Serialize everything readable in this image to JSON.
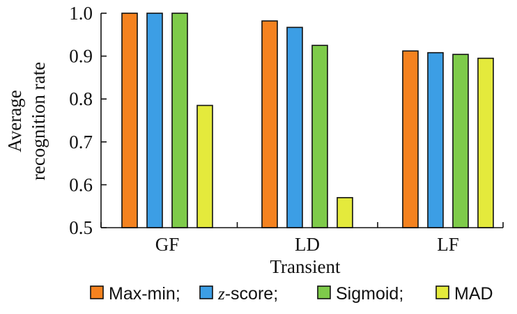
{
  "chart_data": {
    "type": "bar",
    "xlabel": "Transient",
    "ylabel_lines": [
      "Average",
      "recognition rate"
    ],
    "ylim": [
      0.5,
      1.0
    ],
    "yticks": [
      "0.5",
      "0.6",
      "0.7",
      "0.8",
      "0.9",
      "1.0"
    ],
    "categories": [
      "GF",
      "LD",
      "LF"
    ],
    "series": [
      {
        "name": "Max-min",
        "color": "#f5821f",
        "values": [
          1.0,
          0.982,
          0.912
        ]
      },
      {
        "name": "z-score",
        "color": "#3c9ee5",
        "values": [
          1.0,
          0.967,
          0.908
        ]
      },
      {
        "name": "Sigmoid",
        "color": "#7ecb4a",
        "values": [
          1.0,
          0.925,
          0.904
        ]
      },
      {
        "name": "MAD",
        "color": "#e4ea3c",
        "values": [
          0.785,
          0.57,
          0.895
        ]
      }
    ],
    "legend": {
      "placement": "bottom",
      "entries": [
        {
          "prefix": "",
          "italic": "",
          "suffix": "Max-min;"
        },
        {
          "prefix": "",
          "italic": "z",
          "suffix": "-score;"
        },
        {
          "prefix": "",
          "italic": "",
          "suffix": "Sigmoid;"
        },
        {
          "prefix": "",
          "italic": "",
          "suffix": "MAD"
        }
      ]
    },
    "grid": false
  }
}
